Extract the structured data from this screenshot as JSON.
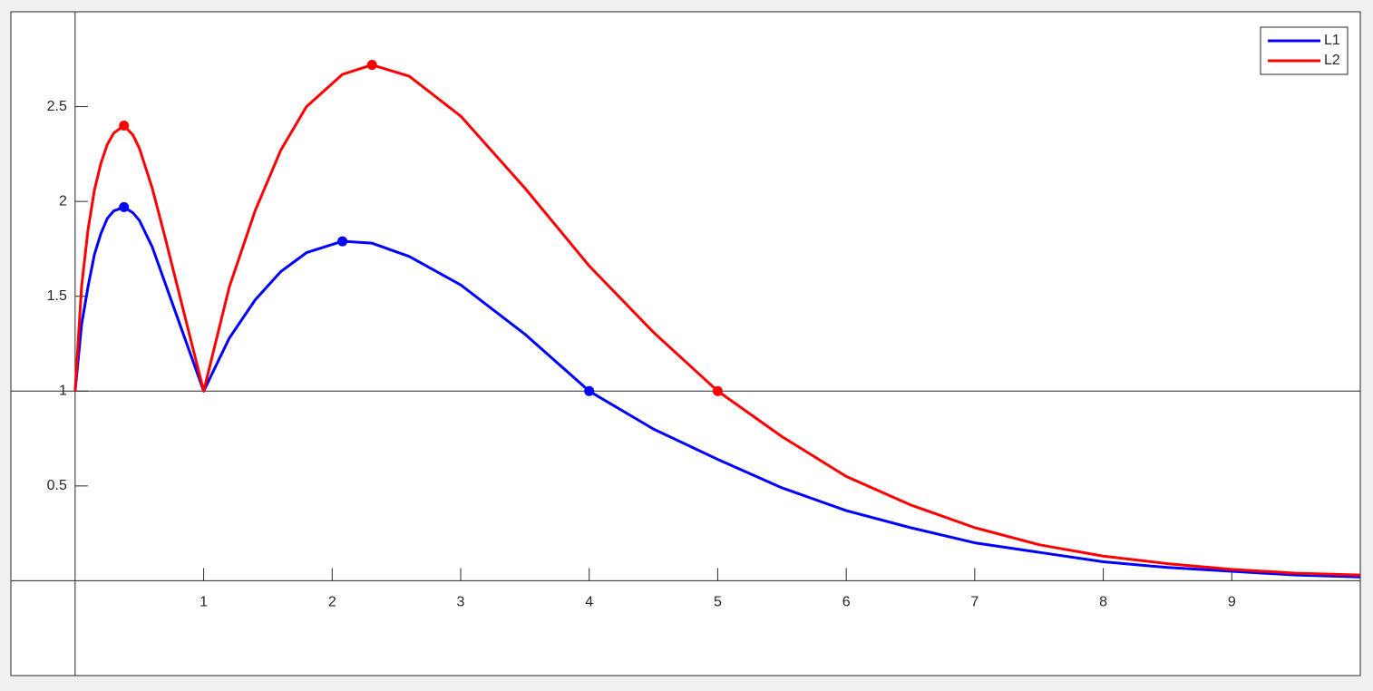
{
  "chart_data": {
    "type": "line",
    "x": [
      0,
      0.05,
      0.1,
      0.15,
      0.2,
      0.25,
      0.3,
      0.38,
      0.45,
      0.5,
      0.6,
      0.7,
      0.8,
      0.9,
      1,
      1.2,
      1.4,
      1.6,
      1.8,
      2.08,
      2.31,
      2.6,
      3,
      3.5,
      4,
      4.5,
      5,
      5.5,
      6,
      6.5,
      7,
      7.5,
      8,
      8.5,
      9,
      9.5,
      10
    ],
    "series": [
      {
        "name": "L1",
        "color": "#0000ff",
        "values": [
          1,
          1.35,
          1.55,
          1.72,
          1.83,
          1.91,
          1.95,
          1.97,
          1.94,
          1.9,
          1.76,
          1.57,
          1.38,
          1.19,
          1,
          1.28,
          1.48,
          1.63,
          1.73,
          1.79,
          1.78,
          1.71,
          1.56,
          1.3,
          1.0,
          0.8,
          0.64,
          0.49,
          0.37,
          0.28,
          0.2,
          0.15,
          0.1,
          0.07,
          0.05,
          0.03,
          0.02
        ],
        "marker_x": [
          0.38,
          2.08,
          4
        ],
        "marker_y": [
          1.97,
          1.79,
          1
        ]
      },
      {
        "name": "L2",
        "color": "#ff0000",
        "values": [
          1,
          1.55,
          1.85,
          2.06,
          2.2,
          2.3,
          2.36,
          2.4,
          2.35,
          2.28,
          2.07,
          1.81,
          1.54,
          1.27,
          1,
          1.55,
          1.95,
          2.27,
          2.5,
          2.67,
          2.72,
          2.66,
          2.45,
          2.07,
          1.66,
          1.31,
          1.0,
          0.76,
          0.55,
          0.4,
          0.28,
          0.19,
          0.13,
          0.09,
          0.06,
          0.04,
          0.03
        ],
        "marker_x": [
          0.38,
          2.31,
          5
        ],
        "marker_y": [
          2.4,
          2.72,
          1
        ]
      }
    ],
    "xlim": [
      -0.5,
      10
    ],
    "ylim": [
      -0.5,
      3
    ],
    "xticks": [
      1,
      2,
      3,
      4,
      5,
      6,
      7,
      8,
      9
    ],
    "yticks": [
      0.5,
      1,
      1.5,
      2,
      2.5
    ],
    "hline": 1,
    "legend": "top-right"
  }
}
